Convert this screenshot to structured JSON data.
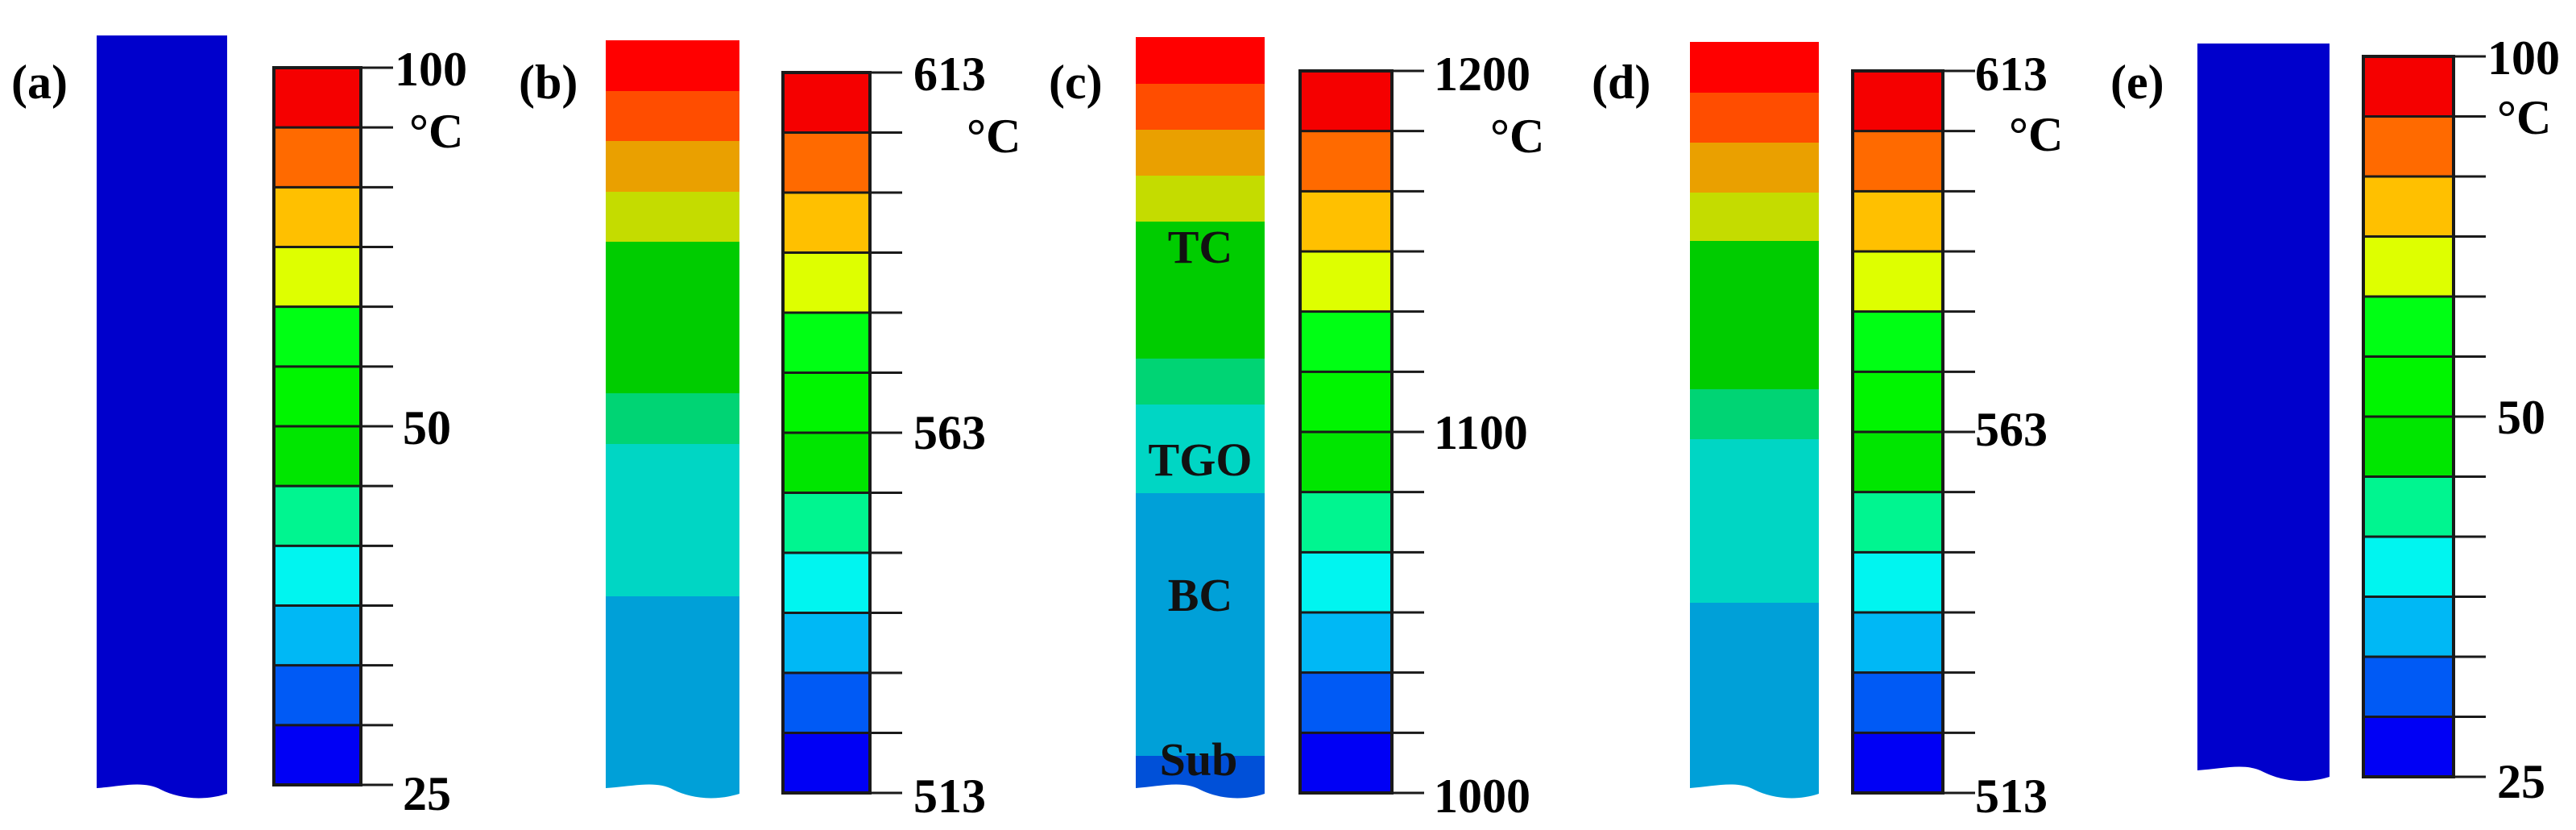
{
  "figure": {
    "description_colors": {
      "scale": [
        "#0000f5",
        "#005af5",
        "#00b8f5",
        "#00f5f0",
        "#00f590",
        "#00e600",
        "#00f500",
        "#00ff14",
        "#deff00",
        "#ffc000",
        "#ff6a00",
        "#f50000"
      ],
      "cold_bar": "#0000cc",
      "tick_line": "#000000"
    },
    "panels": [
      {
        "label": "(a)",
        "ticks": {
          "top": "100",
          "mid": "50",
          "bottom": "25"
        },
        "unit": "°C",
        "strip": "uniform",
        "strip_colors": [
          "#0000cc"
        ]
      },
      {
        "label": "(b)",
        "ticks": {
          "top": "613",
          "mid": "563",
          "bottom": "513"
        },
        "unit": "°C",
        "strip": "graded",
        "strip_colors": [
          "#ff0000",
          "#ff4d00",
          "#eaa000",
          "#c4dc00",
          "#00cc00",
          "#00d474",
          "#00d6c4",
          "#00a0d8"
        ]
      },
      {
        "label": "(c)",
        "ticks": {
          "top": "1200",
          "mid": "1100",
          "bottom": "1000"
        },
        "unit": "°C",
        "strip": "graded",
        "strip_colors": [
          "#ff0000",
          "#ff4d00",
          "#eaa000",
          "#c4dc00",
          "#00cc00",
          "#00d474",
          "#00d6c4",
          "#00a0d8",
          "#0050d8"
        ],
        "layers": [
          "TC",
          "TGO",
          "BC",
          "Sub"
        ]
      },
      {
        "label": "(d)",
        "ticks": {
          "top": "613",
          "mid": "563",
          "bottom": "513"
        },
        "unit": "°C",
        "strip": "graded",
        "strip_colors": [
          "#ff0000",
          "#ff4d00",
          "#eaa000",
          "#c4dc00",
          "#00cc00",
          "#00d474",
          "#00d6c4",
          "#00a0d8"
        ]
      },
      {
        "label": "(e)",
        "ticks": {
          "top": "100",
          "mid": "50",
          "bottom": "25"
        },
        "unit": "°C",
        "strip": "uniform",
        "strip_colors": [
          "#0000cc"
        ]
      }
    ]
  }
}
